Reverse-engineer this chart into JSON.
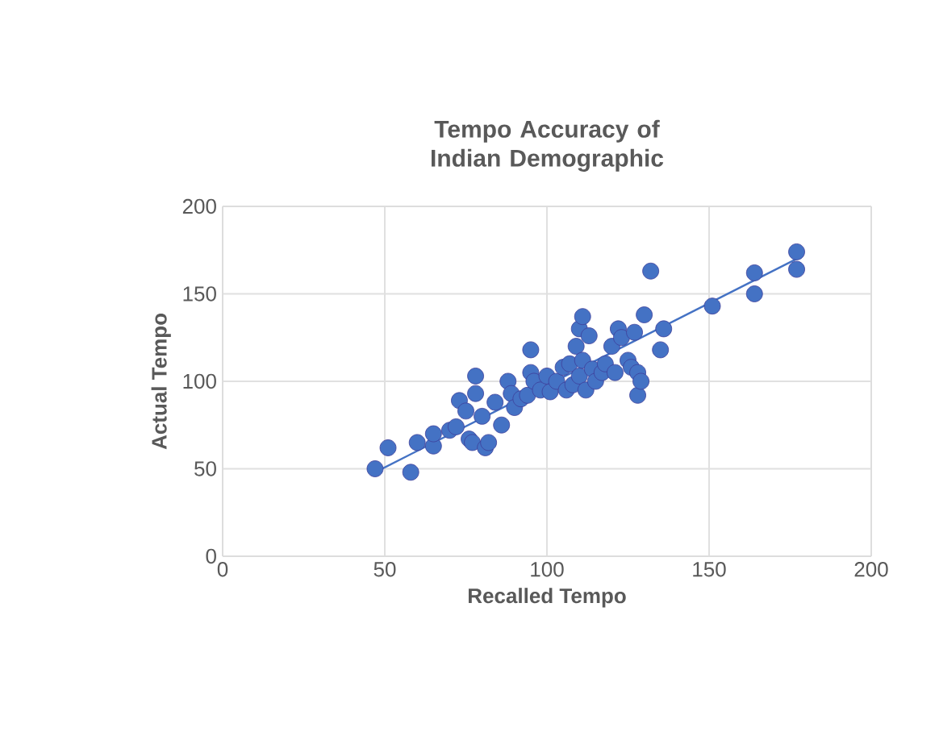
{
  "chart_data": {
    "type": "scatter",
    "title": "Tempo Accuracy of Indian Demographic",
    "xlabel": "Recalled Tempo",
    "ylabel": "Actual Tempo",
    "xlim": [
      0,
      200
    ],
    "ylim": [
      0,
      200
    ],
    "xticks": [
      0,
      50,
      100,
      150,
      200
    ],
    "yticks": [
      0,
      50,
      100,
      150,
      200
    ],
    "grid": true,
    "marker": "circle",
    "series": [
      {
        "color": "#4472c4",
        "x": [
          47,
          51,
          58,
          60,
          65,
          65,
          70,
          72,
          73,
          75,
          76,
          77,
          78,
          78,
          80,
          81,
          82,
          84,
          86,
          88,
          89,
          90,
          92,
          94,
          95,
          95,
          96,
          98,
          100,
          101,
          103,
          105,
          106,
          107,
          108,
          109,
          110,
          110,
          111,
          111,
          112,
          113,
          114,
          115,
          117,
          118,
          120,
          121,
          122,
          123,
          125,
          126,
          127,
          128,
          128,
          129,
          130,
          132,
          135,
          136,
          151,
          164,
          164,
          177,
          177
        ],
        "values": [
          50,
          62,
          48,
          65,
          63,
          70,
          72,
          74,
          89,
          83,
          67,
          65,
          103,
          93,
          80,
          62,
          65,
          88,
          75,
          100,
          93,
          85,
          90,
          92,
          118,
          105,
          100,
          95,
          103,
          94,
          100,
          108,
          95,
          110,
          98,
          120,
          130,
          103,
          137,
          112,
          95,
          126,
          107,
          100,
          105,
          110,
          120,
          105,
          130,
          125,
          112,
          108,
          128,
          92,
          105,
          100,
          138,
          163,
          118,
          130,
          143,
          162,
          150,
          174,
          164
        ]
      },
      {
        "type": "line",
        "color": "#4472c4",
        "marker": "none",
        "x": [
          47,
          177
        ],
        "values": [
          48,
          170
        ]
      }
    ]
  }
}
